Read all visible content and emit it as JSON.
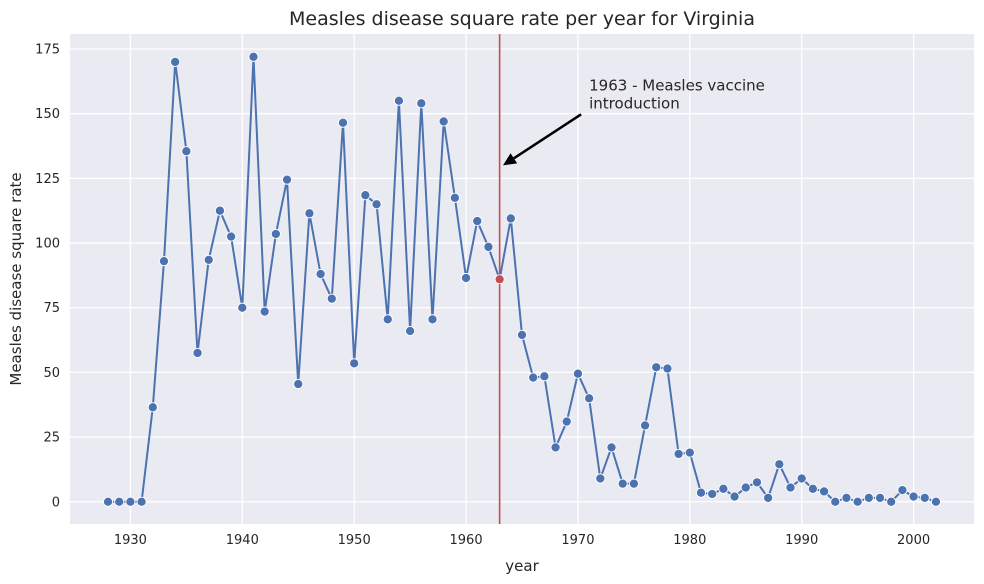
{
  "chart_data": {
    "type": "line",
    "title": "Measles disease square rate per year for Virginia",
    "xlabel": "year",
    "ylabel": "Measles disease square rate",
    "xlim": [
      1924.6,
      2005.4
    ],
    "ylim": [
      -8.6,
      180.8
    ],
    "xticks": [
      1930,
      1940,
      1950,
      1960,
      1970,
      1980,
      1990,
      2000
    ],
    "yticks": [
      0,
      25,
      50,
      75,
      100,
      125,
      150,
      175
    ],
    "grid": true,
    "line_color": "#4c72b0",
    "marker_edge_color": "#ffffff",
    "background_color": "#eaeaf2",
    "grid_color": "#ffffff",
    "highlight_color": "#c44e52",
    "vline": {
      "x": 1963,
      "color": "#c44e52"
    },
    "annotation": {
      "text_lines": [
        "1963 - Measles vaccine",
        "introduction"
      ],
      "text_at": [
        1971,
        154
      ],
      "arrow_tip": [
        1963.3,
        130
      ]
    },
    "x": [
      1928,
      1929,
      1930,
      1931,
      1932,
      1933,
      1934,
      1935,
      1936,
      1937,
      1938,
      1939,
      1940,
      1941,
      1942,
      1943,
      1944,
      1945,
      1946,
      1947,
      1948,
      1949,
      1950,
      1951,
      1952,
      1953,
      1954,
      1955,
      1956,
      1957,
      1958,
      1959,
      1960,
      1961,
      1962,
      1963,
      1964,
      1965,
      1966,
      1967,
      1968,
      1969,
      1970,
      1971,
      1972,
      1973,
      1974,
      1975,
      1976,
      1977,
      1978,
      1979,
      1980,
      1981,
      1982,
      1983,
      1984,
      1985,
      1986,
      1987,
      1988,
      1989,
      1990,
      1991,
      1992,
      1993,
      1994,
      1995,
      1996,
      1997,
      1998,
      1999,
      2000,
      2001,
      2002
    ],
    "y": [
      0,
      0,
      0,
      0,
      36.5,
      93,
      170,
      135.5,
      57.5,
      93.5,
      112.5,
      102.5,
      75,
      172,
      73.5,
      103.5,
      124.5,
      45.5,
      111.5,
      88,
      78.5,
      146.5,
      53.5,
      118.5,
      115,
      70.5,
      155,
      66,
      154,
      70.5,
      147,
      117.5,
      86.5,
      108.5,
      98.5,
      86,
      109.5,
      64.5,
      48,
      48.5,
      21,
      31,
      49.5,
      40,
      9,
      21,
      7,
      7,
      29.5,
      52,
      51.5,
      18.5,
      19,
      3.5,
      3,
      5,
      2,
      5.5,
      7.5,
      1.5,
      14.5,
      5.5,
      9,
      5,
      4,
      0,
      1.5,
      0,
      1.5,
      1.5,
      0,
      4.5,
      2,
      1.5,
      0
    ]
  }
}
